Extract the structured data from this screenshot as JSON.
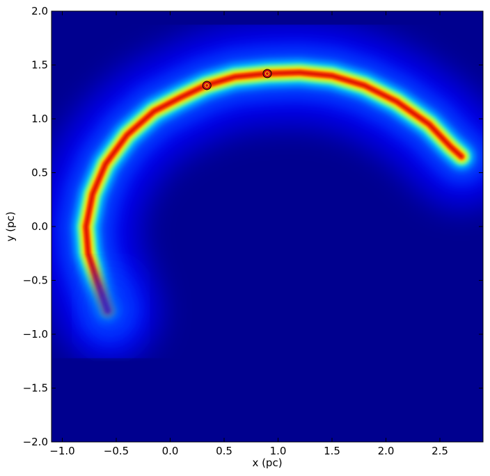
{
  "chart_data": {
    "type": "heatmap",
    "title": "",
    "xlabel": "x (pc)",
    "ylabel": "y (pc)",
    "xlim": [
      -1.1,
      2.9
    ],
    "ylim": [
      -2.0,
      2.0
    ],
    "x_ticks": [
      -1.0,
      -0.5,
      0.0,
      0.5,
      1.0,
      1.5,
      2.0,
      2.5
    ],
    "x_tick_labels": [
      "−1.0",
      "−0.5",
      "0.0",
      "0.5",
      "1.0",
      "1.5",
      "2.0",
      "2.5"
    ],
    "y_ticks": [
      2.0,
      1.5,
      1.0,
      0.5,
      0.0,
      -0.5,
      -1.0,
      -1.5,
      -2.0
    ],
    "y_tick_labels": [
      "2.0",
      "1.5",
      "1.0",
      "0.5",
      "0.0",
      "−0.5",
      "−1.0",
      "−1.5",
      "−2.0"
    ],
    "colormap": "jet",
    "background_color": "#00008f",
    "grid": false,
    "arc_ridge": [
      {
        "x": -0.58,
        "y": -0.78
      },
      {
        "x": -0.68,
        "y": -0.5
      },
      {
        "x": -0.76,
        "y": -0.25
      },
      {
        "x": -0.78,
        "y": 0.0
      },
      {
        "x": -0.72,
        "y": 0.3
      },
      {
        "x": -0.6,
        "y": 0.58
      },
      {
        "x": -0.4,
        "y": 0.85
      },
      {
        "x": -0.15,
        "y": 1.07
      },
      {
        "x": 0.1,
        "y": 1.2
      },
      {
        "x": 0.33,
        "y": 1.31
      },
      {
        "x": 0.6,
        "y": 1.39
      },
      {
        "x": 0.9,
        "y": 1.42
      },
      {
        "x": 1.2,
        "y": 1.43
      },
      {
        "x": 1.5,
        "y": 1.4
      },
      {
        "x": 1.8,
        "y": 1.31
      },
      {
        "x": 2.1,
        "y": 1.16
      },
      {
        "x": 2.4,
        "y": 0.95
      },
      {
        "x": 2.6,
        "y": 0.74
      },
      {
        "x": 2.7,
        "y": 0.65
      }
    ],
    "markers": [
      {
        "x": 0.34,
        "y": 1.31,
        "color": "#d01010"
      },
      {
        "x": 0.9,
        "y": 1.42,
        "color": "#d01010"
      }
    ]
  }
}
